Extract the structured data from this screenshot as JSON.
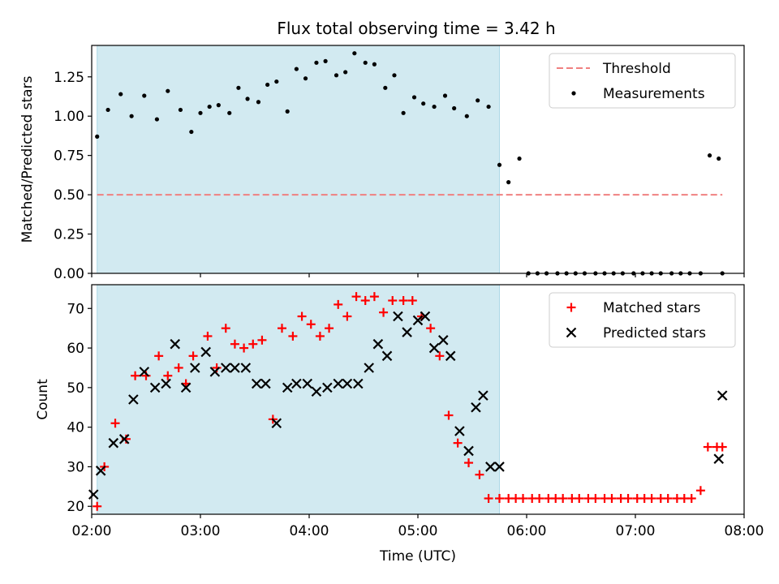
{
  "figure": {
    "title": "Flux total observing time = 3.42 h"
  },
  "chart_data": [
    {
      "type": "scatter",
      "ylabel": "Matched/Predicted stars",
      "xlim": [
        "02:00",
        "08:00"
      ],
      "ylim": [
        0,
        1.45
      ],
      "yticks": [
        "0.00",
        "0.25",
        "0.50",
        "0.75",
        "1.00",
        "1.25"
      ],
      "shaded_interval": [
        "02:03",
        "05:45"
      ],
      "shade_color": "#add8e6",
      "threshold": {
        "name": "Threshold",
        "value": 0.5,
        "x_range": [
          "02:03",
          "07:48"
        ],
        "color": "#f08080"
      },
      "legend_location": "upper right",
      "series": [
        {
          "name": "Measurements",
          "marker": "dot",
          "color": "#000000",
          "x": [
            "02:03",
            "02:09",
            "02:16",
            "02:22",
            "02:29",
            "02:36",
            "02:42",
            "02:49",
            "02:55",
            "03:00",
            "03:05",
            "03:10",
            "03:16",
            "03:21",
            "03:26",
            "03:32",
            "03:37",
            "03:42",
            "03:48",
            "03:53",
            "03:58",
            "04:04",
            "04:09",
            "04:15",
            "04:20",
            "04:25",
            "04:31",
            "04:36",
            "04:42",
            "04:47",
            "04:52",
            "04:58",
            "05:03",
            "05:09",
            "05:15",
            "05:20",
            "05:27",
            "05:33",
            "05:39",
            "05:45",
            "05:50",
            "05:56",
            "06:01",
            "06:06",
            "06:11",
            "06:17",
            "06:22",
            "06:27",
            "06:32",
            "06:38",
            "06:43",
            "06:48",
            "06:53",
            "06:59",
            "07:04",
            "07:09",
            "07:14",
            "07:20",
            "07:25",
            "07:30",
            "07:36",
            "07:41",
            "07:46",
            "07:48"
          ],
          "y": [
            0.87,
            1.04,
            1.14,
            1.0,
            1.13,
            0.98,
            1.16,
            1.04,
            0.9,
            1.02,
            1.06,
            1.07,
            1.02,
            1.18,
            1.11,
            1.09,
            1.2,
            1.22,
            1.03,
            1.3,
            1.24,
            1.34,
            1.35,
            1.26,
            1.28,
            1.4,
            1.34,
            1.33,
            1.18,
            1.26,
            1.02,
            1.12,
            1.08,
            1.06,
            1.13,
            1.05,
            1.0,
            1.1,
            1.06,
            0.69,
            0.58,
            0.73,
            0.0,
            0.0,
            0.0,
            0.0,
            0.0,
            0.0,
            0.0,
            0.0,
            0.0,
            0.0,
            0.0,
            0.0,
            0.0,
            0.0,
            0.0,
            0.0,
            0.0,
            0.0,
            0.0,
            0.75,
            0.73,
            0.0
          ]
        }
      ]
    },
    {
      "type": "scatter",
      "xlabel": "Time (UTC)",
      "ylabel": "Count",
      "xlim": [
        "02:00",
        "08:00"
      ],
      "xticks": [
        "02:00",
        "03:00",
        "04:00",
        "05:00",
        "06:00",
        "07:00",
        "08:00"
      ],
      "ylim": [
        18,
        76
      ],
      "yticks": [
        "20",
        "30",
        "40",
        "50",
        "60",
        "70"
      ],
      "shaded_interval": [
        "02:03",
        "05:45"
      ],
      "shade_color": "#add8e6",
      "legend_location": "upper right",
      "series": [
        {
          "name": "Matched stars",
          "marker": "plus",
          "color": "#ff0000",
          "x": [
            "02:03",
            "02:07",
            "02:13",
            "02:19",
            "02:24",
            "02:30",
            "02:37",
            "02:42",
            "02:48",
            "02:52",
            "02:56",
            "03:04",
            "03:09",
            "03:14",
            "03:19",
            "03:24",
            "03:29",
            "03:34",
            "03:40",
            "03:45",
            "03:51",
            "03:56",
            "04:01",
            "04:06",
            "04:11",
            "04:16",
            "04:21",
            "04:26",
            "04:31",
            "04:36",
            "04:41",
            "04:46",
            "04:52",
            "04:57",
            "05:02",
            "05:07",
            "05:12",
            "05:17",
            "05:22",
            "05:28",
            "05:34",
            "05:39",
            "05:45",
            "05:50",
            "05:54",
            "05:58",
            "06:03",
            "06:07",
            "06:12",
            "06:16",
            "06:20",
            "06:25",
            "06:29",
            "06:34",
            "06:38",
            "06:43",
            "06:47",
            "06:52",
            "06:56",
            "07:01",
            "07:05",
            "07:09",
            "07:14",
            "07:18",
            "07:23",
            "07:27",
            "07:31",
            "07:36",
            "07:40",
            "07:45",
            "07:48"
          ],
          "y": [
            20,
            30,
            41,
            37,
            53,
            53,
            58,
            53,
            55,
            51,
            58,
            63,
            55,
            65,
            61,
            60,
            61,
            62,
            42,
            65,
            63,
            68,
            66,
            63,
            65,
            71,
            68,
            73,
            72,
            73,
            69,
            72,
            72,
            72,
            68,
            65,
            58,
            43,
            36,
            31,
            28,
            22,
            22,
            22,
            22,
            22,
            22,
            22,
            22,
            22,
            22,
            22,
            22,
            22,
            22,
            22,
            22,
            22,
            22,
            22,
            22,
            22,
            22,
            22,
            22,
            22,
            22,
            24,
            35,
            35,
            35
          ]
        },
        {
          "name": "Predicted stars",
          "marker": "x",
          "color": "#000000",
          "x": [
            "02:01",
            "02:05",
            "02:12",
            "02:18",
            "02:23",
            "02:29",
            "02:35",
            "02:41",
            "02:46",
            "02:52",
            "02:57",
            "03:03",
            "03:08",
            "03:14",
            "03:19",
            "03:25",
            "03:31",
            "03:36",
            "03:42",
            "03:48",
            "03:53",
            "03:59",
            "04:04",
            "04:10",
            "04:16",
            "04:21",
            "04:27",
            "04:33",
            "04:38",
            "04:43",
            "04:49",
            "04:54",
            "05:00",
            "05:04",
            "05:09",
            "05:14",
            "05:18",
            "05:23",
            "05:28",
            "05:32",
            "05:36",
            "05:40",
            "05:45",
            "07:46",
            "07:48"
          ],
          "y": [
            23,
            29,
            36,
            37,
            47,
            54,
            50,
            51,
            61,
            50,
            55,
            59,
            54,
            55,
            55,
            55,
            51,
            51,
            41,
            50,
            51,
            51,
            49,
            50,
            51,
            51,
            51,
            55,
            61,
            58,
            68,
            64,
            67,
            68,
            60,
            62,
            58,
            39,
            34,
            45,
            48,
            30,
            30,
            32,
            48
          ]
        }
      ]
    }
  ]
}
